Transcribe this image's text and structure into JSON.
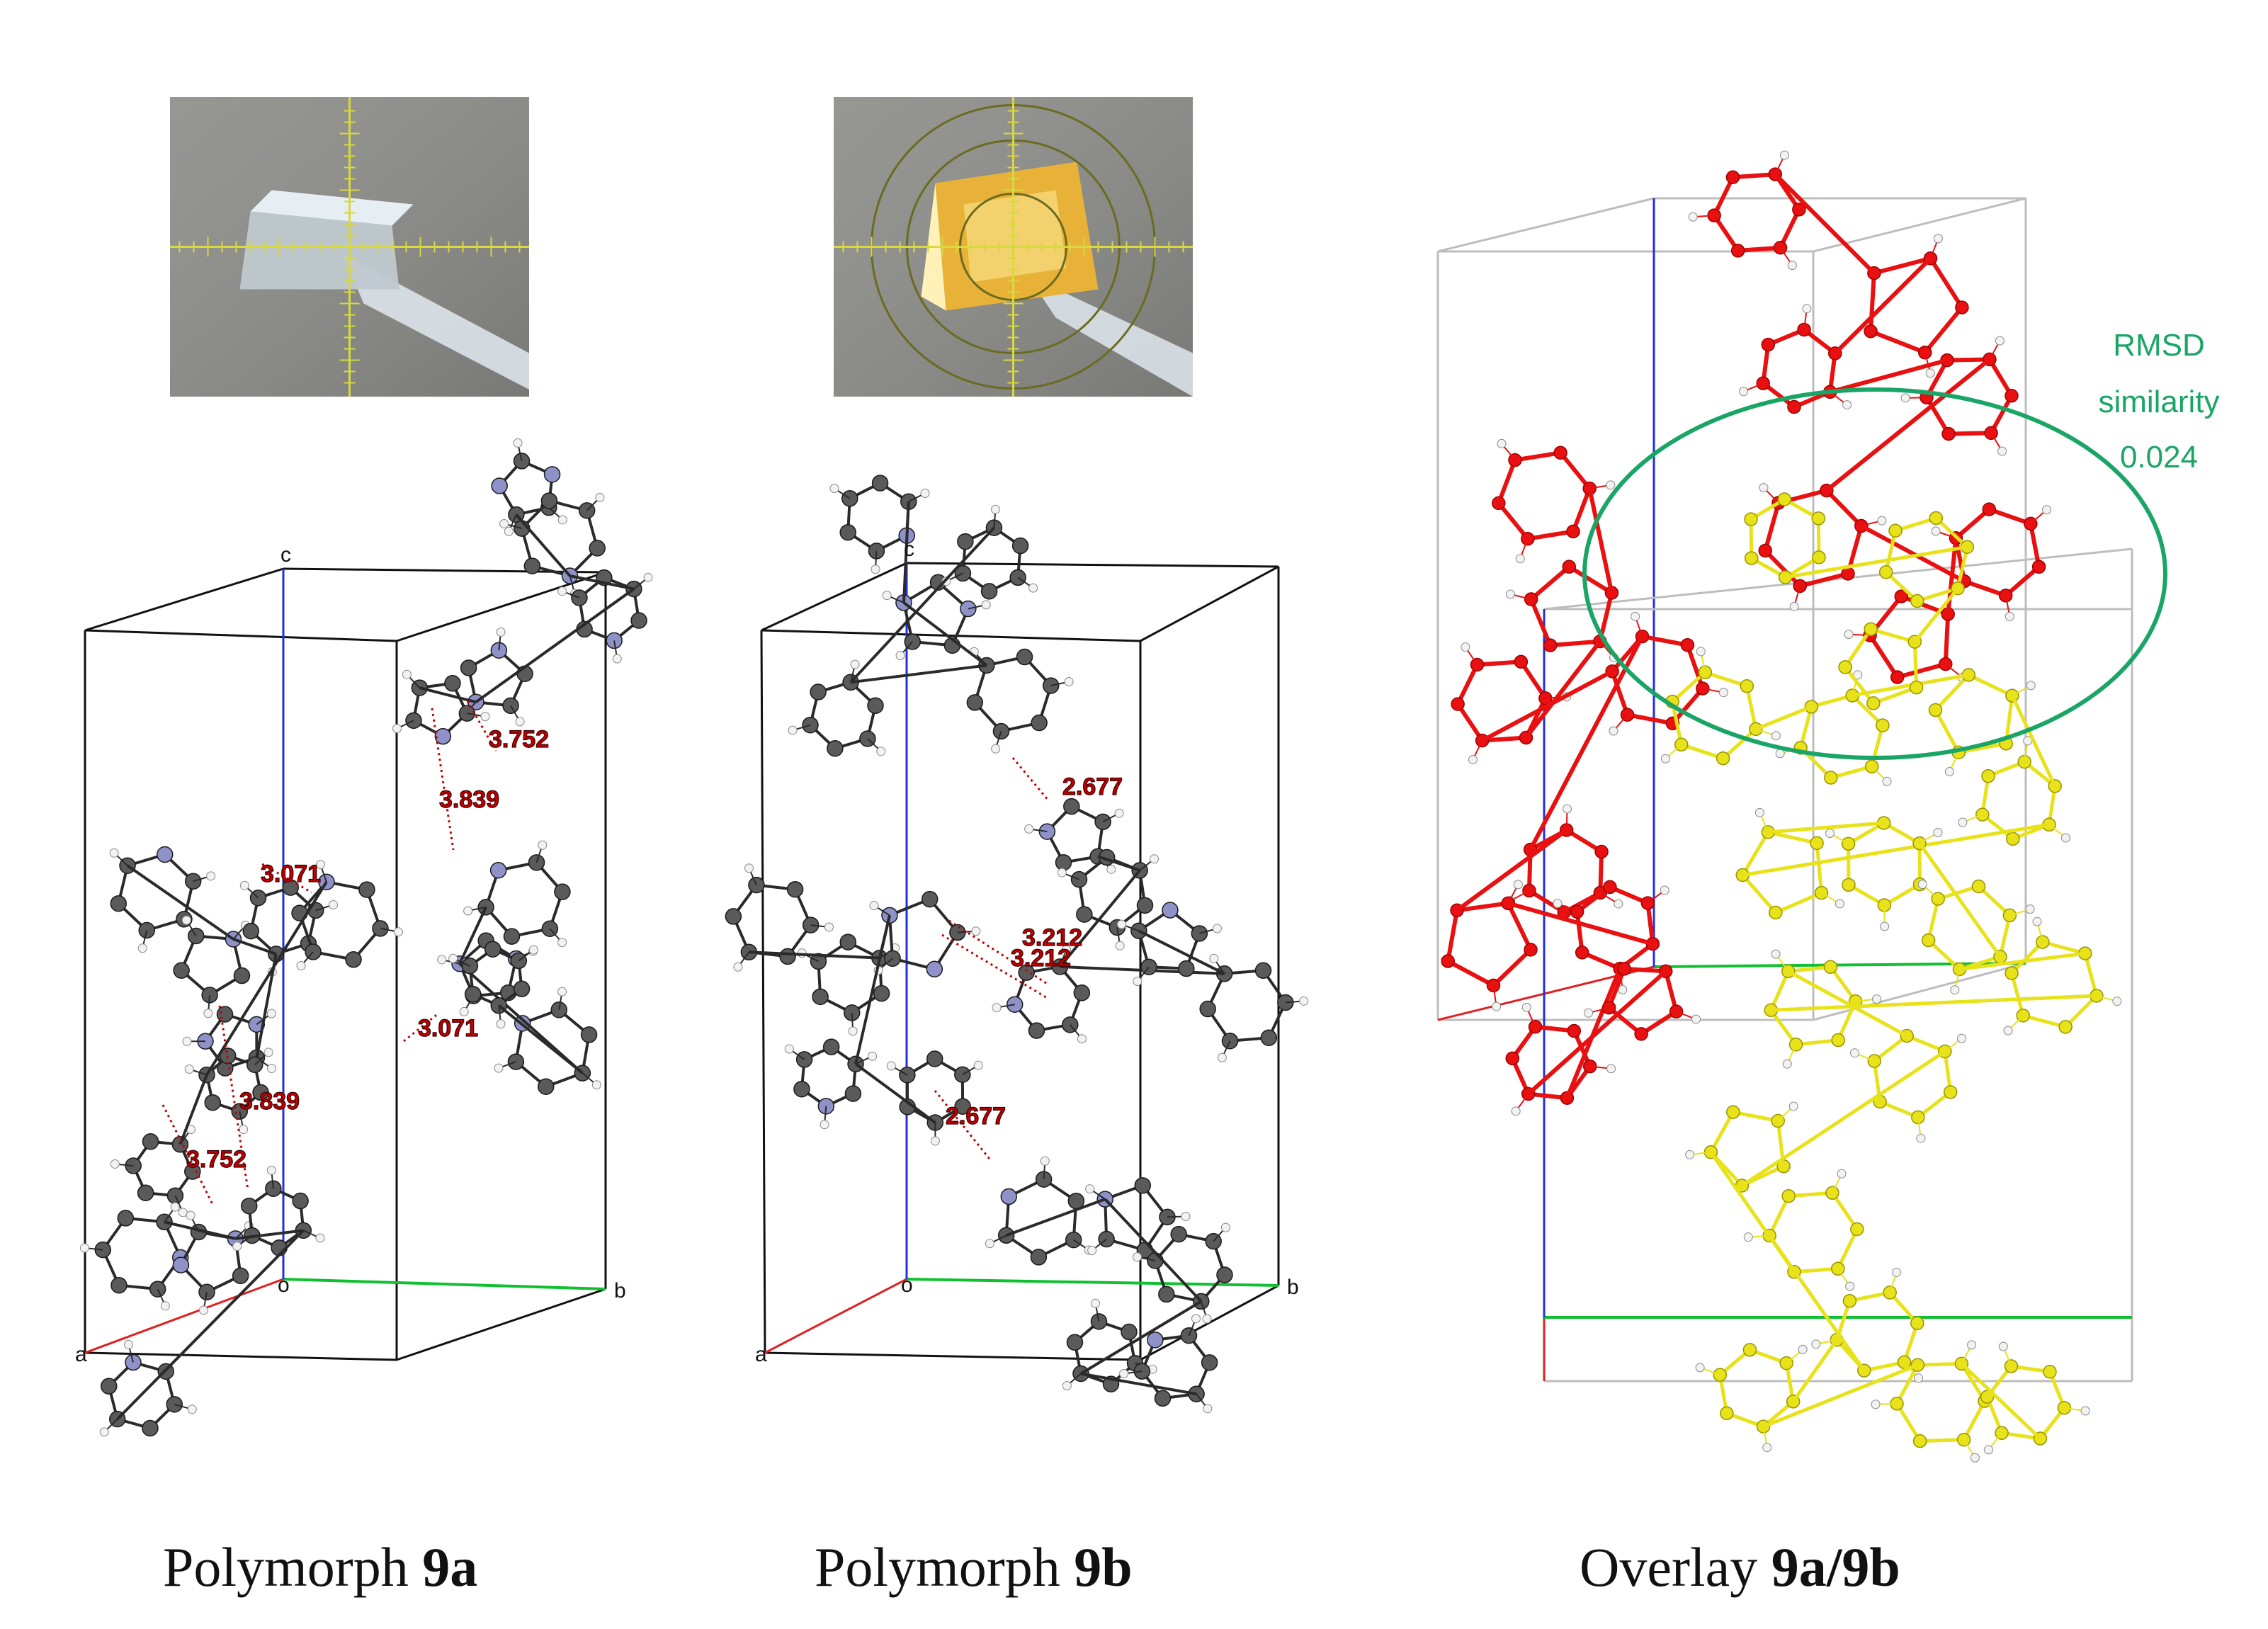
{
  "panels": [
    {
      "id": "9a",
      "caption_prefix": "Polymorph ",
      "caption_bold": "9a",
      "photo": {
        "style": "clear crystal on mount",
        "crosshair": true,
        "rings": false
      },
      "axes": {
        "a": "a",
        "b": "b",
        "c": "c",
        "o": "o"
      },
      "distances": [
        "3.752",
        "3.839",
        "3.071",
        "3.071",
        "3.839",
        "3.752"
      ]
    },
    {
      "id": "9b",
      "caption_prefix": "Polymorph ",
      "caption_bold": "9b",
      "photo": {
        "style": "yellow crystal on mount",
        "crosshair": true,
        "rings": true
      },
      "axes": {
        "a": "a",
        "b": "b",
        "c": "c",
        "o": "o"
      },
      "distances": [
        "2.677",
        "3.212",
        "3.212",
        "2.677"
      ]
    }
  ],
  "overlay": {
    "caption_prefix": "Overlay ",
    "caption_bold": "9a/9b",
    "rmsd_lines": [
      "RMSD",
      "similarity",
      "0.024"
    ],
    "colors": {
      "form_a": "#e81010",
      "form_b": "#e8e21a",
      "highlight": "#1aa566"
    }
  },
  "colors": {
    "measure": "#c00000",
    "axis_a": "#e02020",
    "axis_b": "#10c030",
    "axis_c": "#2030e0",
    "carbon": "#5a5a5a",
    "nitrogen": "#8f92c8",
    "hydrogen": "#f2f2f2"
  }
}
